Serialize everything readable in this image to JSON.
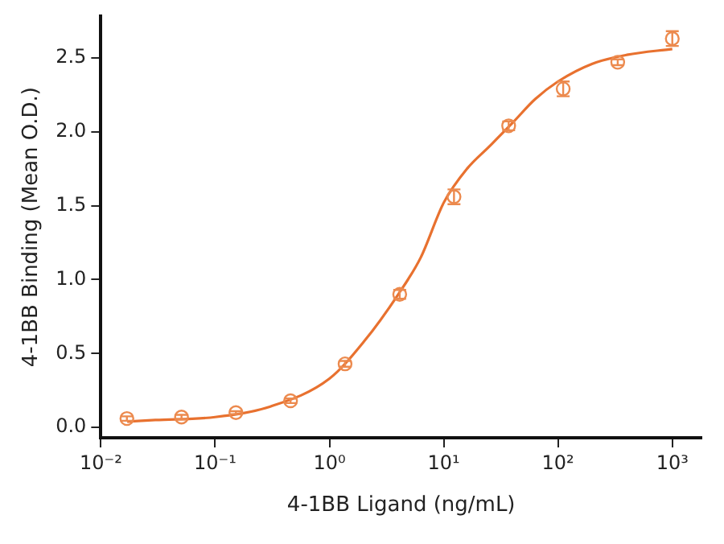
{
  "chart_data": {
    "type": "scatter",
    "xlabel": "4-1BB Ligand (ng/mL)",
    "ylabel": "4-1BB Binding (Mean O.D.)",
    "log": "x",
    "grid": false,
    "legend": false,
    "marker": "circle",
    "xlim": [
      0.01,
      1800
    ],
    "xticks": [
      {
        "value": 0.01,
        "label": "10⁻²"
      },
      {
        "value": 0.1,
        "label": "10⁻¹"
      },
      {
        "value": 1,
        "label": "10⁰"
      },
      {
        "value": 10,
        "label": "10¹"
      },
      {
        "value": 100,
        "label": "10²"
      },
      {
        "value": 1000,
        "label": "10³"
      }
    ],
    "ylim": [
      -0.07,
      2.78
    ],
    "yticks": [
      {
        "value": 0,
        "label": "0.0"
      },
      {
        "value": 0.5,
        "label": "0.5"
      },
      {
        "value": 1,
        "label": "1.0"
      },
      {
        "value": 1.5,
        "label": "1.5"
      },
      {
        "value": 2,
        "label": "2.0"
      },
      {
        "value": 2.5,
        "label": "2.5"
      }
    ],
    "series": [
      {
        "color": "#ec8a4e",
        "x": [
          0.0169,
          0.0508,
          0.152,
          0.457,
          1.37,
          4.12,
          12.3,
          37,
          111,
          333,
          1000
        ],
        "values": [
          0.06,
          0.07,
          0.1,
          0.18,
          0.43,
          0.9,
          1.56,
          2.04,
          2.29,
          2.47,
          2.63
        ],
        "errors": [
          0.015,
          0.015,
          0.01,
          0.015,
          0.02,
          0.03,
          0.05,
          0.03,
          0.05,
          0.02,
          0.05
        ]
      },
      {
        "type": "line",
        "color": "#e8712f",
        "marker": "none",
        "x": [
          0.017,
          0.03,
          0.1,
          0.3,
          1,
          2,
          4,
          6.3,
          10,
          16,
          25,
          40,
          63,
          100,
          200,
          400,
          1000
        ],
        "values": [
          0.04,
          0.05,
          0.07,
          0.14,
          0.33,
          0.58,
          0.9,
          1.15,
          1.52,
          1.75,
          1.9,
          2.06,
          2.22,
          2.34,
          2.46,
          2.52,
          2.56
        ]
      }
    ]
  }
}
